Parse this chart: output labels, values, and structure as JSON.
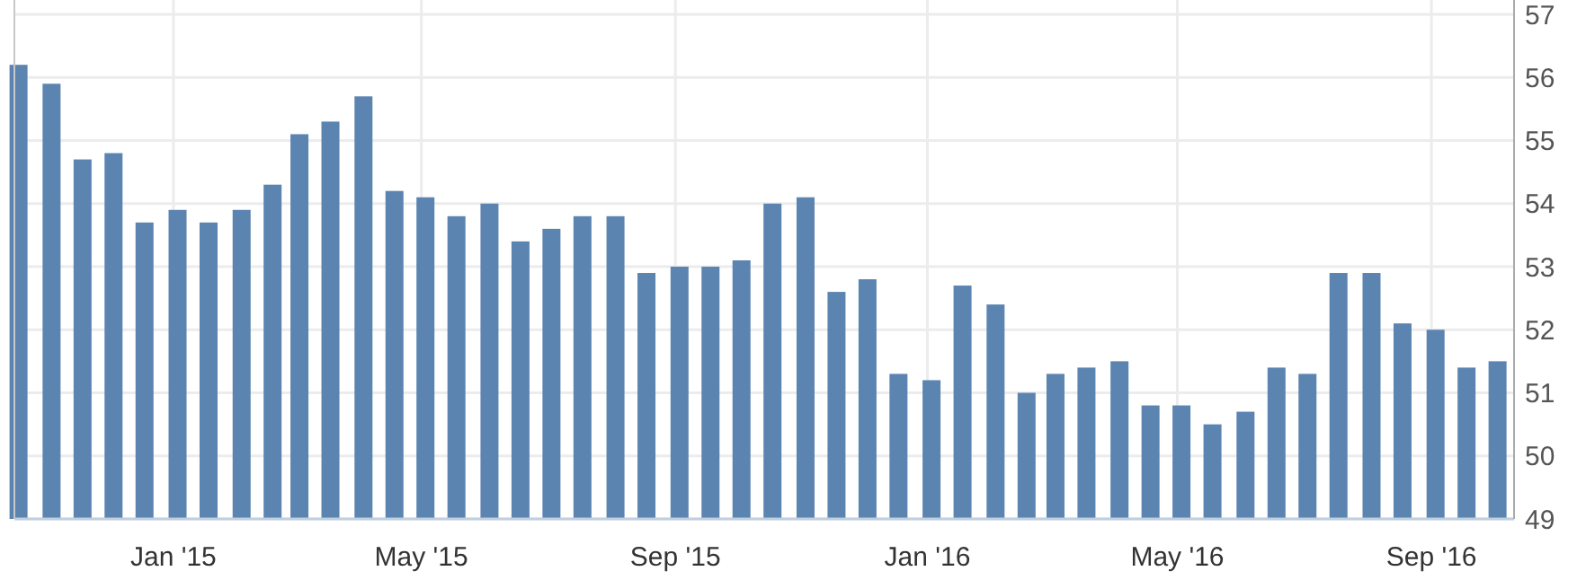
{
  "chart_data": {
    "type": "bar",
    "color": "#5b84b1",
    "x": [
      "2014-10-18",
      "2014-11-03",
      "2014-11-18",
      "2014-12-03",
      "2014-12-18",
      "2015-01-03",
      "2015-01-18",
      "2015-02-03",
      "2015-02-18",
      "2015-03-03",
      "2015-03-18",
      "2015-04-03",
      "2015-04-18",
      "2015-05-03",
      "2015-05-18",
      "2015-06-03",
      "2015-06-18",
      "2015-07-03",
      "2015-07-18",
      "2015-08-03",
      "2015-08-18",
      "2015-09-03",
      "2015-09-18",
      "2015-10-03",
      "2015-10-18",
      "2015-11-03",
      "2015-11-18",
      "2015-12-03",
      "2015-12-18",
      "2016-01-03",
      "2016-01-18",
      "2016-02-03",
      "2016-02-18",
      "2016-03-03",
      "2016-03-18",
      "2016-04-03",
      "2016-04-18",
      "2016-05-03",
      "2016-05-18",
      "2016-06-03",
      "2016-06-18",
      "2016-07-03",
      "2016-07-18",
      "2016-08-03",
      "2016-08-18",
      "2016-09-03",
      "2016-09-18",
      "2016-10-03"
    ],
    "values": [
      56.2,
      55.9,
      54.7,
      54.8,
      53.7,
      53.9,
      53.7,
      53.9,
      54.3,
      55.1,
      55.3,
      55.7,
      54.2,
      54.1,
      53.8,
      54.0,
      53.4,
      53.6,
      53.8,
      53.8,
      52.9,
      53.0,
      53.0,
      53.1,
      54.0,
      54.1,
      52.6,
      52.8,
      51.3,
      51.2,
      52.7,
      52.4,
      51.0,
      51.3,
      51.4,
      51.5,
      50.8,
      50.8,
      50.5,
      50.7,
      51.4,
      51.3,
      52.9,
      52.9,
      52.1,
      52.0,
      51.4,
      51.5
    ],
    "xlim": [
      "2014-10-16",
      "2016-10-11"
    ],
    "xticks": [
      {
        "value": "2015-01-01",
        "label": "Jan '15"
      },
      {
        "value": "2015-05-01",
        "label": "May '15"
      },
      {
        "value": "2015-09-01",
        "label": "Sep '15"
      },
      {
        "value": "2016-01-01",
        "label": "Jan '16"
      },
      {
        "value": "2016-05-01",
        "label": "May '16"
      },
      {
        "value": "2016-09-01",
        "label": "Sep '16"
      }
    ],
    "ylim": [
      49,
      57
    ],
    "yticks": [
      49,
      50,
      51,
      52,
      53,
      54,
      55,
      56,
      57
    ],
    "grid": true
  }
}
